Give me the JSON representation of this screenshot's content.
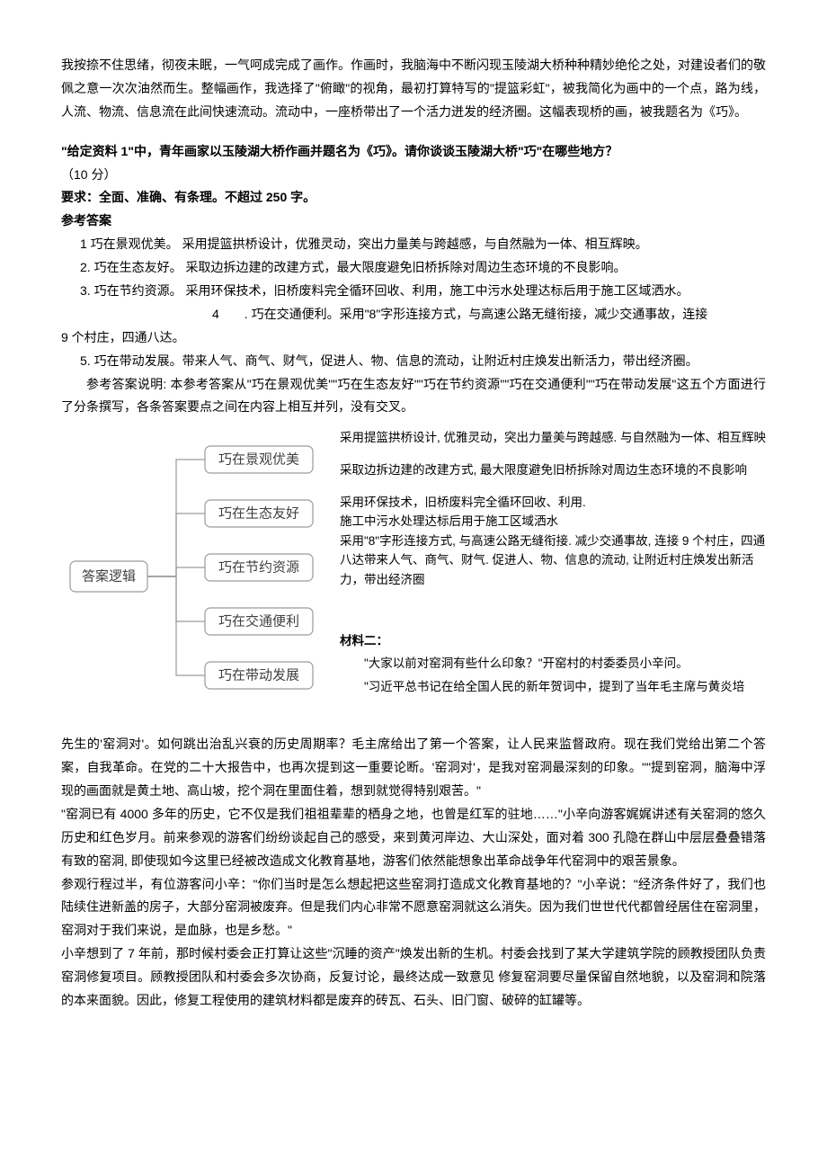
{
  "intro_para": "我按捺不住思绪，彻夜未眠，一气呵成完成了画作。作画时，我脑海中不断闪现玉陵湖大桥种种精妙绝伦之处，对建设者们的敬佩之意一次次油然而生。整幅画作，我选择了\"俯瞰\"的视角，最初打算特写的\"提篮彩虹\"，被我简化为画中的一个点，路为线，人流、物流、信息流在此间快速流动。流动中，一座桥带出了一个活力迸发的经济圈。这幅表现桥的画，被我题名为《巧》。",
  "question_line": "\"给定资料 1\"中，青年画家以玉陵湖大桥作画并题名为《巧》。请你谈谈玉陵湖大桥\"巧\"在哪些地方？",
  "score_line": "（10 分）",
  "req_line": "要求：全面、准确、有条理。不超过 250 字。",
  "ans_header": "参考答案",
  "points": {
    "p1": "1 巧在景观优美。 采用提篮拱桥设计，优雅灵动，突出力量美与跨越感，与自然融为一体、相互辉映。",
    "p2": "2. 巧在生态友好。 采取边拆边建的改建方式，最大限度避免旧桥拆除对周边生态环境的不良影响。",
    "p3": "3. 巧在节约资源。 采用环保技术，旧桥废料完全循环回收、利用，施工中污水处理达标后用于施工区域洒水。",
    "p4a": "4　　. 巧在交通便利。采用\"8\"字形连接方式，与高速公路无缝衔接，减少交通事故，连接",
    "p4b": "9 个村庄，四通八达。",
    "p5": "5. 巧在带动发展。带来人气、商气、财气，促进人、物、信息的流动，让附近村庄焕发出新活力，带出经济圈。",
    "expl": "参考答案说明: 本参考答案从\"巧在景观优美\"\"巧在生态友好\"\"巧在节约资源\"\"巧在交通便利\"\"巧在带动发展\"这五个方面进行了分条撰写，各条答案要点之间在内容上相互并列，没有交叉。"
  },
  "diagram": {
    "root": "答案逻辑",
    "nodes": [
      "巧在景观优美",
      "巧在生态友好",
      "巧在节约资源",
      "巧在交通便利",
      "巧在带动发展"
    ],
    "box_stroke": "#9a9a9a",
    "box_fill": "#ffffff",
    "line_color": "#9a9a9a",
    "box_rx": 6
  },
  "right_texts": {
    "r1": "采用提篮拱桥设计, 优雅灵动，突出力量美与跨越感. 与自然融为一体、相互辉映",
    "r2": "采取边拆边建的改建方式, 最大限度避免旧桥拆除对周边生态环境的不良影响",
    "r3": "采用环保技术，旧桥废料完全循环回收、利用.\n施工中污水处理达标后用于施工区域洒水\n采用\"8\"字形连接方式, 与高速公路无缝衔接. 减少交通事故, 连接 9 个村庄，四通八达带来人气、商气、财气. 促进人、物、信息的流动, 让附近村庄焕发出新活力，带出经济圈",
    "mat2_title": "材料二：",
    "mat2_q": "\"大家以前对窑洞有些什么印象？\"开窑村的村委委员小辛问。",
    "mat2_p1": "\"习近平总书记在给全国人民的新年贺词中，提到了当年毛主席与黄炎培"
  },
  "body2": {
    "p1": "先生的'窑洞对'。如何跳出治乱兴衰的历史周期率？毛主席给出了第一个答案，让人民来监督政府。现在我们党给出第二个答案，自我革命。在党的二十大报告中，也再次提到这一重要论断。'窑洞对'，是我对窑洞最深刻的印象。\"\"提到窑洞，脑海中浮现的画面就是黄土地、高山坡，挖个洞在里面住着，想到就觉得特别艰苦。\"",
    "p2": "\"窑洞已有 4000 多年的历史，它不仅是我们祖祖辈辈的栖身之地，也曾是红军的驻地……\"小辛向游客娓娓讲述有关窑洞的悠久历史和红色岁月。前来参观的游客们纷纷谈起自己的感受，来到黄河岸边、大山深处，面对着 300 孔隐在群山中层层叠叠错落有致的窑洞, 即使现如今这里已经被改造成文化教育基地，游客们依然能想象出革命战争年代窑洞中的艰苦景象。",
    "p3": "参观行程过半，有位游客问小辛：\"你们当时是怎么想起把这些窑洞打造成文化教育基地的？\"小辛说：\"经济条件好了，我们也陆续住进新盖的房子，大部分窑洞被废弃。但是我们内心非常不愿意窑洞就这么消失。因为我们世世代代都曾经居住在窑洞里，窑洞对于我们来说，是血脉，也是乡愁。\"",
    "p4": "小辛想到了 7 年前，那时候村委会正打算让这些\"沉睡的资产\"焕发出新的生机。村委会找到了某大学建筑学院的顾教授团队负责窑洞修复项目。顾教授团队和村委会多次协商，反复讨论，最终达成一致意见  修复窑洞要尽量保留自然地貌，以及窑洞和院落的本来面貌。因此，修复工程使用的建筑材料都是废弃的砖瓦、石头、旧门窗、破碎的缸罐等。"
  }
}
